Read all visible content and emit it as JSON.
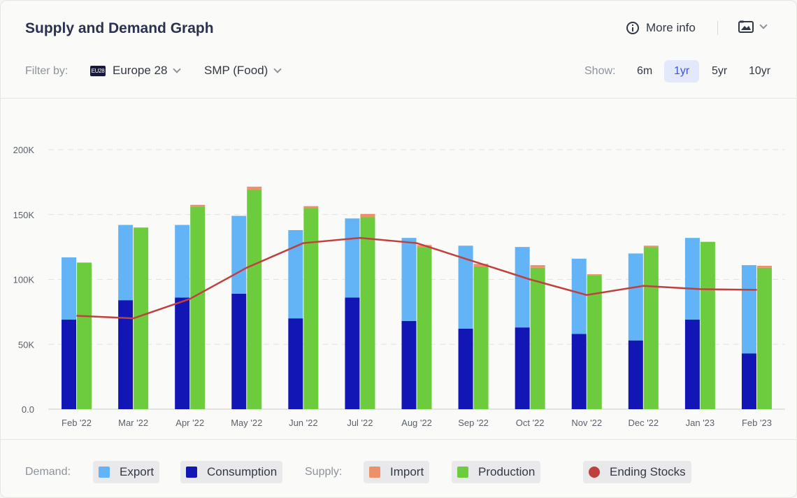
{
  "header": {
    "title": "Supply and Demand Graph",
    "more_info": "More info"
  },
  "filters": {
    "label": "Filter by:",
    "region": "Europe 28",
    "region_badge": "EU28",
    "product": "SMP (Food)"
  },
  "range": {
    "label": "Show:",
    "options": [
      "6m",
      "1yr",
      "5yr",
      "10yr"
    ],
    "selected": "1yr"
  },
  "legend": {
    "demand_label": "Demand:",
    "supply_label": "Supply:",
    "items": [
      {
        "name": "Export",
        "color": "#62b4f7"
      },
      {
        "name": "Consumption",
        "color": "#1116b5"
      },
      {
        "name": "Import",
        "color": "#ee9068"
      },
      {
        "name": "Production",
        "color": "#6dcc3e"
      },
      {
        "name": "Ending Stocks",
        "color": "#c0403e"
      }
    ]
  },
  "chart_data": {
    "type": "bar",
    "categories": [
      "Feb '22",
      "Mar '22",
      "Apr '22",
      "May '22",
      "Jun '22",
      "Jul '22",
      "Aug '22",
      "Sep '22",
      "Oct '22",
      "Nov '22",
      "Dec '22",
      "Jan '23",
      "Feb '23"
    ],
    "ylim": [
      0,
      200000
    ],
    "yticks": [
      0,
      50000,
      100000,
      150000,
      200000
    ],
    "ytick_labels": [
      "0.0",
      "50K",
      "100K",
      "150K",
      "200K"
    ],
    "grid": true,
    "series": [
      {
        "name": "Consumption",
        "stack": "demand",
        "values": [
          69000,
          84000,
          86000,
          89000,
          70000,
          86000,
          68000,
          62000,
          63000,
          58000,
          53000,
          69000,
          43000
        ]
      },
      {
        "name": "Export",
        "stack": "demand",
        "values": [
          48000,
          58000,
          56000,
          60000,
          68000,
          61000,
          64000,
          64000,
          62000,
          58000,
          67000,
          63000,
          68000
        ]
      },
      {
        "name": "Production",
        "stack": "supply",
        "values": [
          113000,
          140000,
          156000,
          169000,
          155000,
          148000,
          125000,
          110000,
          109000,
          103000,
          125000,
          129000,
          109000
        ]
      },
      {
        "name": "Import",
        "stack": "supply",
        "values": [
          0,
          0,
          1500,
          2500,
          1500,
          2500,
          1500,
          2000,
          2000,
          1000,
          1000,
          0,
          1500
        ]
      },
      {
        "name": "Ending Stocks",
        "type": "line",
        "values": [
          72000,
          70000,
          85000,
          109000,
          128000,
          132000,
          128000,
          114000,
          100000,
          88000,
          95000,
          92500,
          92000
        ]
      }
    ]
  }
}
